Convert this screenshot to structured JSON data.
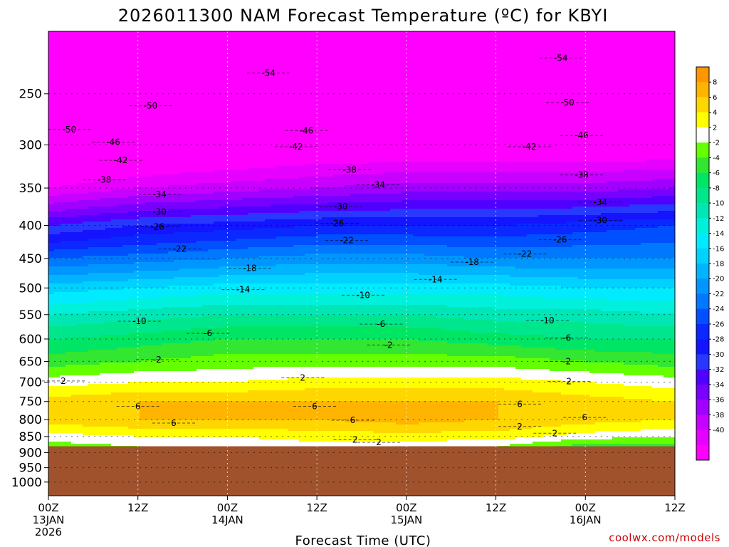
{
  "chart_data": {
    "type": "heatmap",
    "title": "2026011300 NAM Forecast Temperature (ºC) for KBYI",
    "xlabel": "Forecast Time (UTC)",
    "credit": "coolwx.com/models",
    "x_forecast_hours_range": [
      0,
      84
    ],
    "x_ticks": [
      {
        "hour": 0,
        "label": "00Z",
        "date": "13JAN",
        "year": "2026"
      },
      {
        "hour": 12,
        "label": "12Z",
        "date": "",
        "year": ""
      },
      {
        "hour": 24,
        "label": "00Z",
        "date": "14JAN",
        "year": ""
      },
      {
        "hour": 36,
        "label": "12Z",
        "date": "",
        "year": ""
      },
      {
        "hour": 48,
        "label": "00Z",
        "date": "15JAN",
        "year": ""
      },
      {
        "hour": 60,
        "label": "12Z",
        "date": "",
        "year": ""
      },
      {
        "hour": 72,
        "label": "00Z",
        "date": "16JAN",
        "year": ""
      },
      {
        "hour": 84,
        "label": "12Z",
        "date": "",
        "year": ""
      }
    ],
    "y_axis_pressure_hpa_range": [
      200,
      1050
    ],
    "y_ticks": [
      {
        "p": 250,
        "label": "250"
      },
      {
        "p": 300,
        "label": "300"
      },
      {
        "p": 350,
        "label": "350"
      },
      {
        "p": 400,
        "label": "400"
      },
      {
        "p": 450,
        "label": "450"
      },
      {
        "p": 500,
        "label": "500"
      },
      {
        "p": 550,
        "label": "550"
      },
      {
        "p": 600,
        "label": "600"
      },
      {
        "p": 650,
        "label": "650"
      },
      {
        "p": 700,
        "label": "700"
      },
      {
        "p": 750,
        "label": "750"
      },
      {
        "p": 800,
        "label": "800"
      },
      {
        "p": 850,
        "label": "850"
      },
      {
        "p": 900,
        "label": "900"
      },
      {
        "p": 950,
        "label": "950"
      },
      {
        "p": 1000,
        "label": "1000"
      }
    ],
    "surface_pressure_hpa": 880,
    "profile_pressure_levels_hpa": [
      200,
      250,
      300,
      350,
      400,
      450,
      500,
      550,
      600,
      650,
      700,
      750,
      800,
      850,
      880
    ],
    "profile_times_hours": [
      0,
      12,
      24,
      36,
      48,
      60,
      72,
      84
    ],
    "temperature_profiles_c": [
      [
        -58,
        -52,
        -46,
        -40,
        -30,
        -22,
        -15,
        -10,
        -6,
        -3,
        1,
        5,
        5,
        1,
        -1
      ],
      [
        -57,
        -51,
        -45,
        -38,
        -28,
        -21,
        -14,
        -9,
        -5,
        -2,
        2,
        6,
        6,
        2,
        0
      ],
      [
        -56,
        -50,
        -44,
        -37,
        -27,
        -20,
        -13,
        -8,
        -4,
        -1,
        2,
        6,
        6,
        2,
        0
      ],
      [
        -56,
        -50,
        -43,
        -36,
        -26,
        -19,
        -13,
        -8,
        -4,
        -1,
        3,
        6,
        6,
        3,
        1
      ],
      [
        -57,
        -50,
        -43,
        -35,
        -26,
        -19,
        -13,
        -8,
        -4,
        -1,
        3,
        6,
        7,
        3,
        1
      ],
      [
        -57,
        -50,
        -43,
        -35,
        -26,
        -20,
        -13,
        -9,
        -5,
        -1,
        3,
        6,
        6,
        3,
        0
      ],
      [
        -56,
        -50,
        -43,
        -35,
        -25,
        -20,
        -14,
        -9,
        -6,
        -2,
        2,
        5,
        5,
        1,
        -3
      ],
      [
        -56,
        -50,
        -43,
        -34,
        -24,
        -20,
        -14,
        -10,
        -6,
        -3,
        1,
        4,
        4,
        0,
        -3
      ]
    ],
    "contour_labels": [
      {
        "v": "-54",
        "h": 29.5,
        "p": 232
      },
      {
        "v": "-54",
        "h": 68.7,
        "p": 220
      },
      {
        "v": "-50",
        "h": 2.8,
        "p": 284
      },
      {
        "v": "-50",
        "h": 13.7,
        "p": 261
      },
      {
        "v": "-50",
        "h": 69.6,
        "p": 258
      },
      {
        "v": "-46",
        "h": 8.7,
        "p": 297
      },
      {
        "v": "-46",
        "h": 34.6,
        "p": 285
      },
      {
        "v": "-46",
        "h": 71.5,
        "p": 290
      },
      {
        "v": "-42",
        "h": 9.7,
        "p": 317
      },
      {
        "v": "-42",
        "h": 33.2,
        "p": 302
      },
      {
        "v": "-42",
        "h": 64.5,
        "p": 302
      },
      {
        "v": "-38",
        "h": 7.5,
        "p": 340
      },
      {
        "v": "-38",
        "h": 40.4,
        "p": 328
      },
      {
        "v": "-38",
        "h": 71.5,
        "p": 334
      },
      {
        "v": "-34",
        "h": 14.9,
        "p": 358
      },
      {
        "v": "-34",
        "h": 44.2,
        "p": 346
      },
      {
        "v": "-34",
        "h": 74.0,
        "p": 368
      },
      {
        "v": "-30",
        "h": 14.9,
        "p": 381
      },
      {
        "v": "-30",
        "h": 39.2,
        "p": 374
      },
      {
        "v": "-30",
        "h": 74.0,
        "p": 393
      },
      {
        "v": "-26",
        "h": 14.6,
        "p": 402
      },
      {
        "v": "-26",
        "h": 38.7,
        "p": 397
      },
      {
        "v": "-26",
        "h": 68.6,
        "p": 421
      },
      {
        "v": "-22",
        "h": 17.6,
        "p": 435
      },
      {
        "v": "-22",
        "h": 40.0,
        "p": 422
      },
      {
        "v": "-22",
        "h": 63.9,
        "p": 443
      },
      {
        "v": "-18",
        "h": 27.0,
        "p": 466
      },
      {
        "v": "-18",
        "h": 56.8,
        "p": 456
      },
      {
        "v": "-14",
        "h": 26.1,
        "p": 503
      },
      {
        "v": "-14",
        "h": 51.9,
        "p": 485
      },
      {
        "v": "-10",
        "h": 12.2,
        "p": 563
      },
      {
        "v": "-10",
        "h": 42.2,
        "p": 513
      },
      {
        "v": "-10",
        "h": 66.9,
        "p": 562
      },
      {
        "v": "-6",
        "h": 21.4,
        "p": 588
      },
      {
        "v": "-6",
        "h": 44.6,
        "p": 569
      },
      {
        "v": "-6",
        "h": 69.5,
        "p": 598
      },
      {
        "v": "-2",
        "h": 14.6,
        "p": 646
      },
      {
        "v": "-2",
        "h": 45.6,
        "p": 613
      },
      {
        "v": "-2",
        "h": 69.5,
        "p": 650
      },
      {
        "v": "2",
        "h": 2.0,
        "p": 697
      },
      {
        "v": "2",
        "h": 34.1,
        "p": 689
      },
      {
        "v": "2",
        "h": 69.8,
        "p": 698
      },
      {
        "v": "6",
        "h": 12.0,
        "p": 763
      },
      {
        "v": "6",
        "h": 35.7,
        "p": 763
      },
      {
        "v": "6",
        "h": 63.2,
        "p": 757
      },
      {
        "v": "6",
        "h": 16.8,
        "p": 810
      },
      {
        "v": "6",
        "h": 40.8,
        "p": 802
      },
      {
        "v": "6",
        "h": 71.9,
        "p": 794
      },
      {
        "v": "2",
        "h": 41.1,
        "p": 860
      },
      {
        "v": "2",
        "h": 44.3,
        "p": 868
      },
      {
        "v": "2",
        "h": 63.2,
        "p": 820
      },
      {
        "v": "2",
        "h": 67.9,
        "p": 840
      }
    ],
    "colorbar": {
      "label_min": -40,
      "label_max": 8,
      "label_step": 2,
      "labels": [
        "8",
        "6",
        "4",
        "2",
        "-2",
        "-4",
        "-6",
        "-8",
        "-10",
        "-12",
        "-14",
        "-16",
        "-18",
        "-20",
        "-22",
        "-24",
        "-26",
        "-28",
        "-30",
        "-32",
        "-34",
        "-36",
        "-38",
        "-40"
      ],
      "colors": [
        "#ff00ff",
        "#e600ff",
        "#c800ff",
        "#a000ff",
        "#7800ff",
        "#5000ff",
        "#2838ff",
        "#1414ff",
        "#0a28ff",
        "#0050ff",
        "#0078ff",
        "#0096ff",
        "#00b4ff",
        "#00d2ff",
        "#00ebff",
        "#00f0dc",
        "#00e6b4",
        "#00e68c",
        "#00e664",
        "#32e632",
        "#64ff00",
        "#ffffff",
        "#ffff00",
        "#ffd700",
        "#ffb400",
        "#ff9600"
      ]
    }
  }
}
